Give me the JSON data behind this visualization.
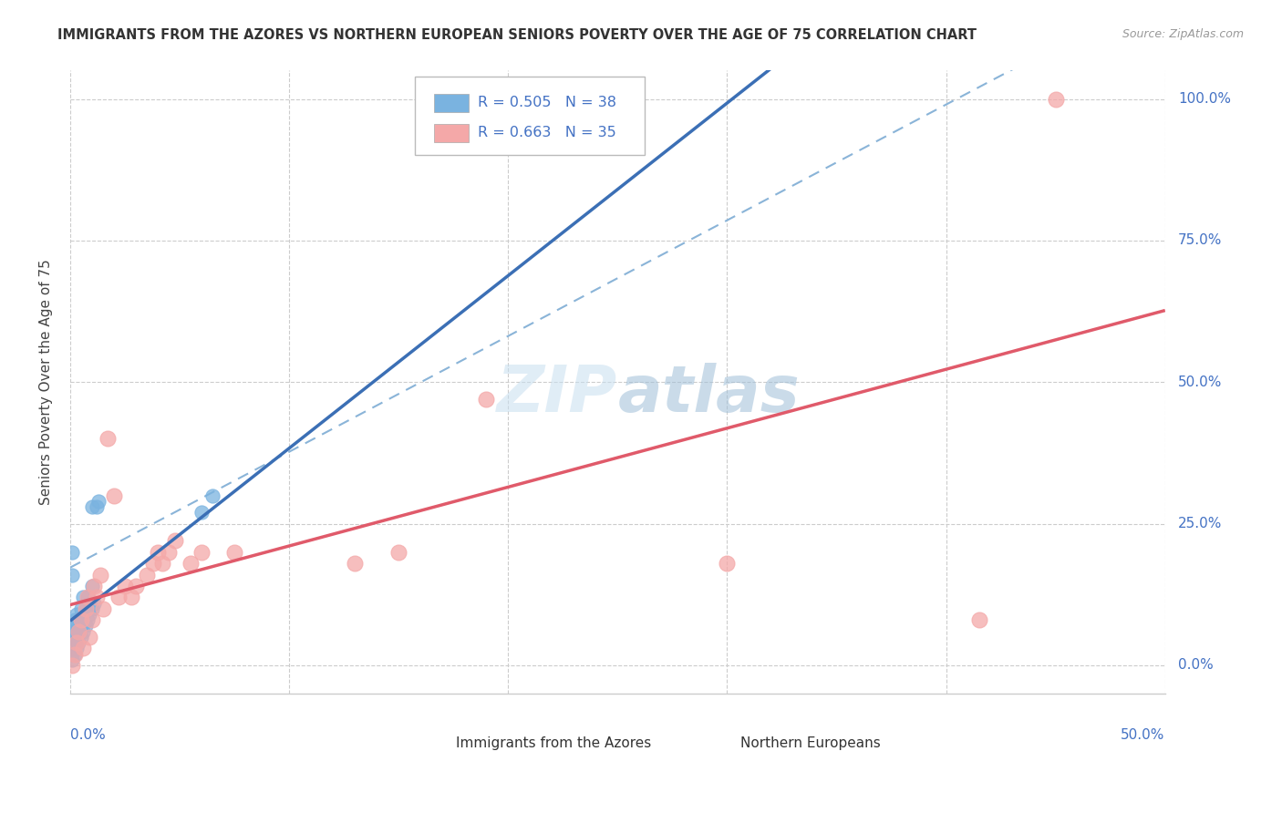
{
  "title": "IMMIGRANTS FROM THE AZORES VS NORTHERN EUROPEAN SENIORS POVERTY OVER THE AGE OF 75 CORRELATION CHART",
  "source": "Source: ZipAtlas.com",
  "ylabel": "Seniors Poverty Over the Age of 75",
  "ytick_labels": [
    "0.0%",
    "25.0%",
    "50.0%",
    "75.0%",
    "100.0%"
  ],
  "ytick_values": [
    0.0,
    0.25,
    0.5,
    0.75,
    1.0
  ],
  "xtick_values": [
    0.0,
    0.1,
    0.2,
    0.3,
    0.4,
    0.5
  ],
  "xlim": [
    0,
    0.5
  ],
  "ylim": [
    -0.05,
    1.05
  ],
  "azores_R": 0.505,
  "azores_N": 38,
  "northern_R": 0.663,
  "northern_N": 35,
  "azores_color": "#7ab3e0",
  "northern_color": "#f4a8a8",
  "azores_line_color": "#3b6fb5",
  "northern_line_color": "#e05a6a",
  "dashed_line_color": "#8ab4d8",
  "legend_label_azores": "Immigrants from the Azores",
  "legend_label_northern": "Northern Europeans",
  "watermark": "ZIPatlas",
  "background_color": "#ffffff",
  "azores_points": [
    [
      0.001,
      0.01
    ],
    [
      0.001,
      0.02
    ],
    [
      0.001,
      0.03
    ],
    [
      0.001,
      0.04
    ],
    [
      0.001,
      0.05
    ],
    [
      0.001,
      0.06
    ],
    [
      0.002,
      0.02
    ],
    [
      0.002,
      0.04
    ],
    [
      0.002,
      0.06
    ],
    [
      0.002,
      0.08
    ],
    [
      0.003,
      0.03
    ],
    [
      0.003,
      0.05
    ],
    [
      0.003,
      0.07
    ],
    [
      0.003,
      0.09
    ],
    [
      0.004,
      0.04
    ],
    [
      0.004,
      0.06
    ],
    [
      0.004,
      0.08
    ],
    [
      0.005,
      0.05
    ],
    [
      0.005,
      0.07
    ],
    [
      0.005,
      0.1
    ],
    [
      0.006,
      0.06
    ],
    [
      0.006,
      0.08
    ],
    [
      0.006,
      0.12
    ],
    [
      0.007,
      0.07
    ],
    [
      0.007,
      0.1
    ],
    [
      0.008,
      0.08
    ],
    [
      0.008,
      0.12
    ],
    [
      0.009,
      0.09
    ],
    [
      0.01,
      0.1
    ],
    [
      0.01,
      0.14
    ],
    [
      0.01,
      0.28
    ],
    [
      0.011,
      0.11
    ],
    [
      0.012,
      0.28
    ],
    [
      0.013,
      0.29
    ],
    [
      0.06,
      0.27
    ],
    [
      0.065,
      0.3
    ],
    [
      0.001,
      0.16
    ],
    [
      0.001,
      0.2
    ]
  ],
  "northern_points": [
    [
      0.001,
      0.0
    ],
    [
      0.002,
      0.02
    ],
    [
      0.003,
      0.04
    ],
    [
      0.004,
      0.06
    ],
    [
      0.005,
      0.08
    ],
    [
      0.006,
      0.03
    ],
    [
      0.007,
      0.1
    ],
    [
      0.008,
      0.12
    ],
    [
      0.009,
      0.05
    ],
    [
      0.01,
      0.08
    ],
    [
      0.011,
      0.14
    ],
    [
      0.012,
      0.12
    ],
    [
      0.014,
      0.16
    ],
    [
      0.015,
      0.1
    ],
    [
      0.017,
      0.4
    ],
    [
      0.02,
      0.3
    ],
    [
      0.022,
      0.12
    ],
    [
      0.025,
      0.14
    ],
    [
      0.028,
      0.12
    ],
    [
      0.03,
      0.14
    ],
    [
      0.035,
      0.16
    ],
    [
      0.038,
      0.18
    ],
    [
      0.04,
      0.2
    ],
    [
      0.042,
      0.18
    ],
    [
      0.045,
      0.2
    ],
    [
      0.048,
      0.22
    ],
    [
      0.055,
      0.18
    ],
    [
      0.06,
      0.2
    ],
    [
      0.075,
      0.2
    ],
    [
      0.13,
      0.18
    ],
    [
      0.15,
      0.2
    ],
    [
      0.19,
      0.47
    ],
    [
      0.3,
      0.18
    ],
    [
      0.415,
      0.08
    ],
    [
      0.45,
      1.0
    ]
  ]
}
